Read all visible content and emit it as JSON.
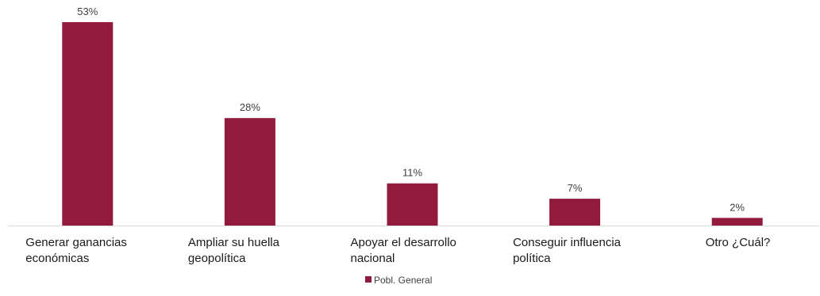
{
  "chart_data": {
    "type": "bar",
    "categories": [
      [
        "Generar ganancias",
        "económicas"
      ],
      [
        "Ampliar su huella",
        "geopolítica"
      ],
      [
        "Apoyar el desarrollo",
        "nacional"
      ],
      [
        "Conseguir influencia",
        "política"
      ],
      [
        "Otro ¿Cuál?"
      ]
    ],
    "series": [
      {
        "name": "Pobl. General",
        "values": [
          53,
          28,
          11,
          7,
          2
        ],
        "color": "#921a3c"
      }
    ],
    "data_labels": [
      "53%",
      "28%",
      "11%",
      "7%",
      "2%"
    ],
    "value_unit": "%",
    "ylim": [
      0,
      53
    ],
    "grid": false,
    "legend_position": "bottom-center",
    "axis_color": "#d9d9d9"
  }
}
